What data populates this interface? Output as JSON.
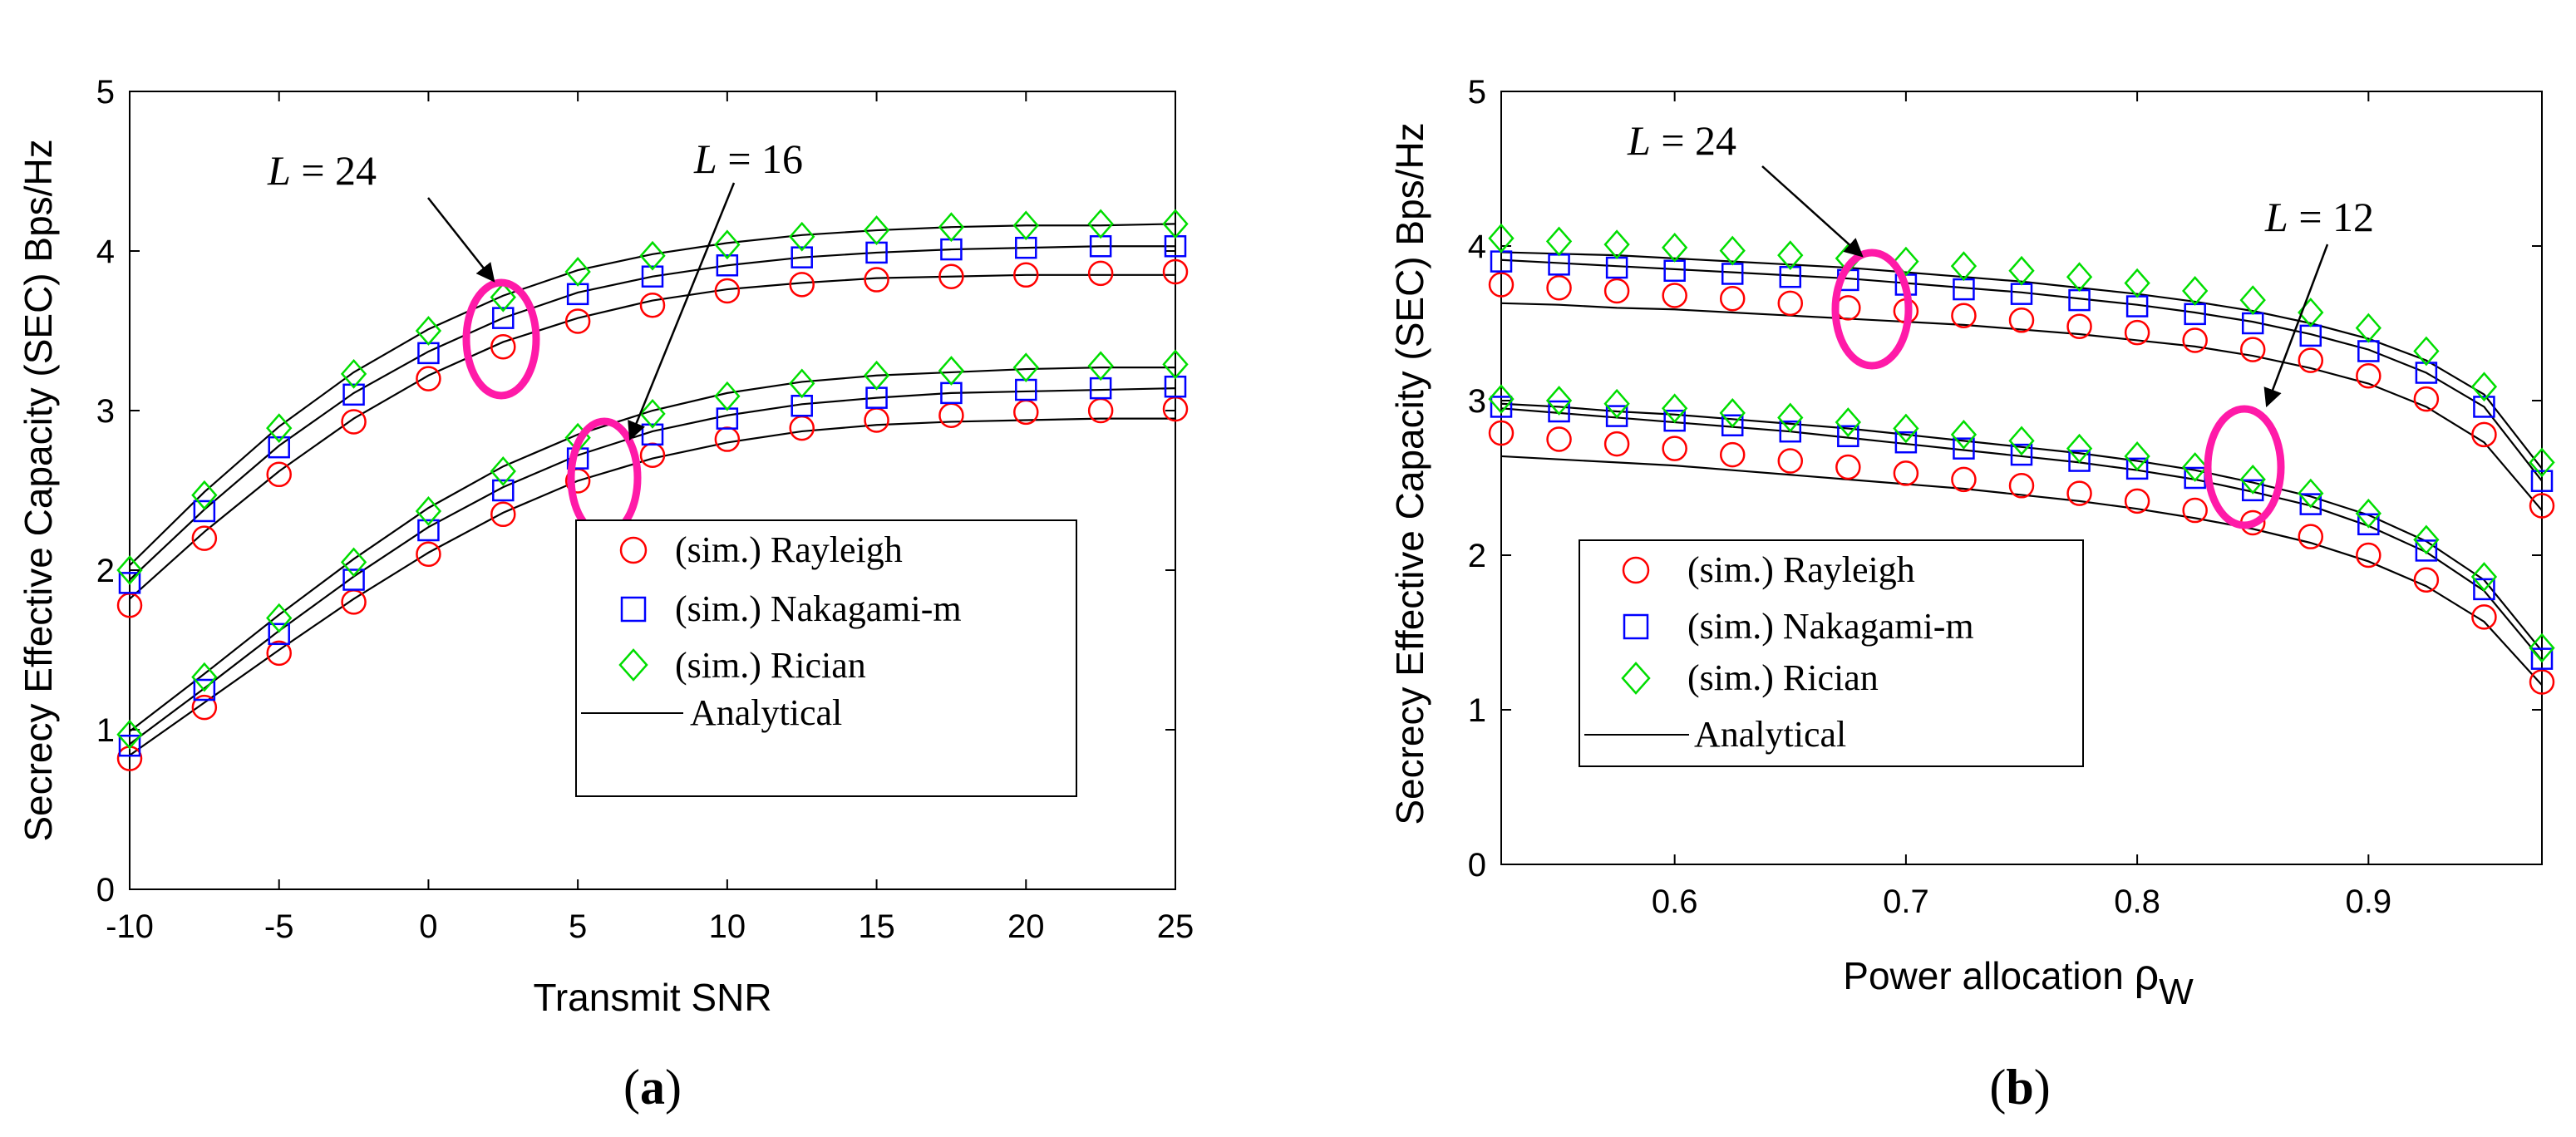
{
  "chart_data": [
    {
      "type": "line",
      "subfigure_label": "(a)",
      "xlabel": "Transmit SNR",
      "ylabel": "Secrecy Effective Capacity (SEC) Bps/Hz",
      "xlim": [
        -10,
        25
      ],
      "ylim": [
        0,
        5
      ],
      "xticks": [
        "-10",
        "-5",
        "0",
        "5",
        "10",
        "15",
        "20",
        "25"
      ],
      "yticks": [
        "0",
        "1",
        "2",
        "3",
        "4",
        "5"
      ],
      "x": [
        -10,
        -7.5,
        -5,
        -2.5,
        0,
        2.5,
        5,
        7.5,
        10,
        12.5,
        15,
        17.5,
        20,
        22.5,
        25
      ],
      "annotations": [
        {
          "var": "L",
          "value": "24"
        },
        {
          "var": "L",
          "value": "16"
        }
      ],
      "legend": {
        "placement": "center-right",
        "entries": [
          "(sim.) Rayleigh",
          "(sim.) Nakagami-m",
          "(sim.) Rician",
          "Analytical"
        ]
      },
      "series": [
        {
          "name": "(sim.) Rayleigh",
          "group": "L = 24",
          "marker": "circle",
          "color": "#ff0000",
          "values": [
            1.78,
            2.2,
            2.6,
            2.93,
            3.2,
            3.4,
            3.56,
            3.66,
            3.75,
            3.79,
            3.82,
            3.84,
            3.85,
            3.86,
            3.87
          ]
        },
        {
          "name": "(sim.) Nakagami-m",
          "group": "L = 24",
          "marker": "square",
          "color": "#0000ff",
          "values": [
            1.92,
            2.37,
            2.77,
            3.1,
            3.36,
            3.58,
            3.73,
            3.84,
            3.91,
            3.96,
            3.99,
            4.01,
            4.02,
            4.03,
            4.03
          ]
        },
        {
          "name": "(sim.) Rician",
          "group": "L = 24",
          "marker": "diamond",
          "color": "#00dd00",
          "values": [
            2.0,
            2.47,
            2.89,
            3.23,
            3.5,
            3.71,
            3.87,
            3.97,
            4.04,
            4.09,
            4.13,
            4.15,
            4.16,
            4.17,
            4.17
          ]
        },
        {
          "name": "Analytical",
          "group": "L = 24",
          "marker": "line",
          "color": "#000000",
          "values": [
            1.82,
            2.24,
            2.62,
            2.95,
            3.22,
            3.43,
            3.58,
            3.69,
            3.76,
            3.8,
            3.83,
            3.84,
            3.85,
            3.85,
            3.85
          ]
        },
        {
          "name": "Analytical",
          "group": "L = 24",
          "marker": "line",
          "color": "#000000",
          "values": [
            1.94,
            2.38,
            2.78,
            3.11,
            3.37,
            3.58,
            3.74,
            3.84,
            3.91,
            3.96,
            3.99,
            4.01,
            4.02,
            4.03,
            4.03
          ]
        },
        {
          "name": "Analytical",
          "group": "L = 24",
          "marker": "line",
          "color": "#000000",
          "values": [
            2.03,
            2.49,
            2.9,
            3.24,
            3.51,
            3.72,
            3.88,
            3.98,
            4.05,
            4.1,
            4.13,
            4.15,
            4.16,
            4.16,
            4.17
          ]
        },
        {
          "name": "(sim.) Rayleigh",
          "group": "L = 16",
          "marker": "circle",
          "color": "#ff0000",
          "values": [
            0.82,
            1.14,
            1.48,
            1.8,
            2.1,
            2.35,
            2.56,
            2.72,
            2.82,
            2.89,
            2.94,
            2.97,
            2.99,
            3.0,
            3.01
          ]
        },
        {
          "name": "(sim.) Nakagami-m",
          "group": "L = 16",
          "marker": "square",
          "color": "#0000ff",
          "values": [
            0.9,
            1.25,
            1.6,
            1.94,
            2.25,
            2.5,
            2.7,
            2.85,
            2.95,
            3.03,
            3.08,
            3.11,
            3.13,
            3.14,
            3.15
          ]
        },
        {
          "name": "(sim.) Rician",
          "group": "L = 16",
          "marker": "diamond",
          "color": "#00dd00",
          "values": [
            0.97,
            1.33,
            1.7,
            2.05,
            2.37,
            2.62,
            2.83,
            2.98,
            3.09,
            3.17,
            3.22,
            3.25,
            3.27,
            3.28,
            3.29
          ]
        },
        {
          "name": "Analytical",
          "group": "L = 16",
          "marker": "line",
          "color": "#000000",
          "values": [
            0.84,
            1.17,
            1.5,
            1.82,
            2.11,
            2.36,
            2.56,
            2.7,
            2.8,
            2.87,
            2.91,
            2.93,
            2.94,
            2.95,
            2.95
          ]
        },
        {
          "name": "Analytical",
          "group": "L = 16",
          "marker": "line",
          "color": "#000000",
          "values": [
            0.91,
            1.26,
            1.62,
            1.96,
            2.27,
            2.52,
            2.72,
            2.87,
            2.97,
            3.04,
            3.08,
            3.11,
            3.12,
            3.13,
            3.14
          ]
        },
        {
          "name": "Analytical",
          "group": "L = 16",
          "marker": "line",
          "color": "#000000",
          "values": [
            0.99,
            1.35,
            1.72,
            2.07,
            2.39,
            2.65,
            2.85,
            3.0,
            3.11,
            3.18,
            3.22,
            3.24,
            3.26,
            3.27,
            3.27
          ]
        }
      ]
    },
    {
      "type": "line",
      "subfigure_label": "(b)",
      "xlabel": "Power allocation",
      "xlabel_symbol": "ρ",
      "xlabel_subscript": "W",
      "ylabel": "Secrecy Effective Capacity (SEC) Bps/Hz",
      "xlim": [
        0.525,
        0.975
      ],
      "ylim": [
        0,
        5
      ],
      "xticks": [
        "0.6",
        "0.7",
        "0.8",
        "0.9"
      ],
      "yticks": [
        "0",
        "1",
        "2",
        "3",
        "4",
        "5"
      ],
      "x": [
        0.525,
        0.55,
        0.575,
        0.6,
        0.625,
        0.65,
        0.675,
        0.7,
        0.725,
        0.75,
        0.775,
        0.8,
        0.825,
        0.85,
        0.875,
        0.9,
        0.925,
        0.95,
        0.975
      ],
      "annotations": [
        {
          "var": "L",
          "value": "24"
        },
        {
          "var": "L",
          "value": "12"
        }
      ],
      "legend": {
        "placement": "lower-left",
        "entries": [
          "(sim.) Rayleigh",
          "(sim.) Nakagami-m",
          "(sim.) Rician",
          "Analytical"
        ]
      },
      "series": [
        {
          "name": "(sim.) Rayleigh",
          "group": "L = 24",
          "marker": "circle",
          "color": "#ff0000",
          "values": [
            3.75,
            3.73,
            3.71,
            3.68,
            3.66,
            3.63,
            3.6,
            3.58,
            3.55,
            3.52,
            3.48,
            3.44,
            3.39,
            3.33,
            3.26,
            3.16,
            3.01,
            2.78,
            2.32
          ]
        },
        {
          "name": "(sim.) Nakagami-m",
          "group": "L = 24",
          "marker": "square",
          "color": "#0000ff",
          "values": [
            3.9,
            3.88,
            3.86,
            3.84,
            3.82,
            3.8,
            3.78,
            3.75,
            3.72,
            3.69,
            3.65,
            3.61,
            3.56,
            3.5,
            3.42,
            3.32,
            3.18,
            2.96,
            2.48
          ]
        },
        {
          "name": "(sim.) Rician",
          "group": "L = 24",
          "marker": "diamond",
          "color": "#00dd00",
          "values": [
            4.05,
            4.03,
            4.01,
            3.99,
            3.97,
            3.94,
            3.92,
            3.9,
            3.87,
            3.84,
            3.8,
            3.76,
            3.71,
            3.65,
            3.57,
            3.47,
            3.32,
            3.09,
            2.6
          ]
        },
        {
          "name": "Analytical",
          "group": "L = 24",
          "marker": "line",
          "color": "#000000",
          "values": [
            3.63,
            3.62,
            3.6,
            3.59,
            3.57,
            3.55,
            3.53,
            3.51,
            3.49,
            3.46,
            3.43,
            3.39,
            3.35,
            3.29,
            3.21,
            3.11,
            2.96,
            2.73,
            2.29
          ]
        },
        {
          "name": "Analytical",
          "group": "L = 24",
          "marker": "line",
          "color": "#000000",
          "values": [
            3.91,
            3.89,
            3.87,
            3.85,
            3.83,
            3.81,
            3.79,
            3.76,
            3.73,
            3.7,
            3.66,
            3.62,
            3.57,
            3.51,
            3.43,
            3.33,
            3.18,
            2.96,
            2.48
          ]
        },
        {
          "name": "Analytical",
          "group": "L = 24",
          "marker": "line",
          "color": "#000000",
          "values": [
            3.96,
            3.95,
            3.94,
            3.92,
            3.9,
            3.88,
            3.86,
            3.83,
            3.8,
            3.77,
            3.73,
            3.69,
            3.64,
            3.58,
            3.5,
            3.4,
            3.26,
            3.04,
            2.56
          ]
        },
        {
          "name": "(sim.) Rayleigh",
          "group": "L = 12",
          "marker": "circle",
          "color": "#ff0000",
          "values": [
            2.79,
            2.75,
            2.72,
            2.69,
            2.65,
            2.61,
            2.57,
            2.53,
            2.49,
            2.45,
            2.4,
            2.35,
            2.29,
            2.21,
            2.12,
            2.0,
            1.84,
            1.6,
            1.18
          ]
        },
        {
          "name": "(sim.) Nakagami-m",
          "group": "L = 12",
          "marker": "square",
          "color": "#0000ff",
          "values": [
            2.96,
            2.93,
            2.9,
            2.87,
            2.84,
            2.8,
            2.77,
            2.73,
            2.69,
            2.65,
            2.61,
            2.56,
            2.5,
            2.42,
            2.33,
            2.2,
            2.03,
            1.78,
            1.33
          ]
        },
        {
          "name": "(sim.) Rician",
          "group": "L = 12",
          "marker": "diamond",
          "color": "#00dd00",
          "values": [
            3.01,
            3.0,
            2.98,
            2.95,
            2.92,
            2.89,
            2.86,
            2.82,
            2.78,
            2.74,
            2.69,
            2.64,
            2.57,
            2.49,
            2.4,
            2.27,
            2.1,
            1.86,
            1.4
          ]
        },
        {
          "name": "Analytical",
          "group": "L = 12",
          "marker": "line",
          "color": "#000000",
          "values": [
            2.64,
            2.62,
            2.6,
            2.58,
            2.55,
            2.52,
            2.49,
            2.46,
            2.43,
            2.39,
            2.35,
            2.3,
            2.24,
            2.17,
            2.08,
            1.96,
            1.8,
            1.57,
            1.16
          ]
        },
        {
          "name": "Analytical",
          "group": "L = 12",
          "marker": "line",
          "color": "#000000",
          "values": [
            2.95,
            2.92,
            2.89,
            2.86,
            2.83,
            2.8,
            2.76,
            2.72,
            2.68,
            2.64,
            2.6,
            2.55,
            2.49,
            2.41,
            2.32,
            2.19,
            2.02,
            1.77,
            1.32
          ]
        },
        {
          "name": "Analytical",
          "group": "L = 12",
          "marker": "line",
          "color": "#000000",
          "values": [
            2.98,
            2.96,
            2.93,
            2.91,
            2.88,
            2.85,
            2.82,
            2.78,
            2.74,
            2.7,
            2.66,
            2.61,
            2.55,
            2.47,
            2.38,
            2.26,
            2.09,
            1.84,
            1.38
          ]
        }
      ]
    }
  ]
}
